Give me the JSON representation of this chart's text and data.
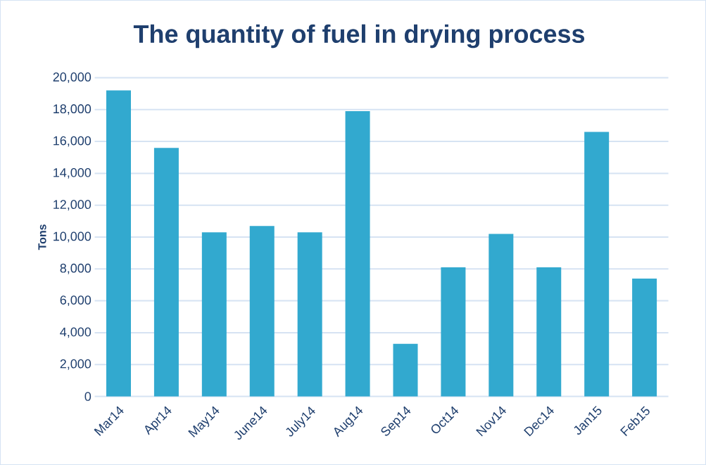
{
  "chart_data": {
    "type": "bar",
    "title": "The quantity of fuel in drying process",
    "ylabel": "Tons",
    "categories": [
      "Mar14",
      "Apr14",
      "May14",
      "June14",
      "July14",
      "Aug14",
      "Sep14",
      "Oct14",
      "Nov14",
      "Dec14",
      "Jan15",
      "Feb15"
    ],
    "values": [
      19200,
      15600,
      10300,
      10700,
      10300,
      17900,
      3300,
      8100,
      10200,
      8100,
      16600,
      7400
    ],
    "color": "#32a9cf",
    "ylim": [
      0,
      20000
    ],
    "yticks": [
      {
        "value": 0,
        "label": "0"
      },
      {
        "value": 2000,
        "label": "2,000"
      },
      {
        "value": 4000,
        "label": "4,000"
      },
      {
        "value": 6000,
        "label": "6,000"
      },
      {
        "value": 8000,
        "label": "8,000"
      },
      {
        "value": 10000,
        "label": "10,000"
      },
      {
        "value": 12000,
        "label": "12,000"
      },
      {
        "value": 14000,
        "label": "14,000"
      },
      {
        "value": 16000,
        "label": "16,000"
      },
      {
        "value": 18000,
        "label": "18,000"
      },
      {
        "value": 20000,
        "label": "20,000"
      }
    ],
    "grid": "y"
  }
}
